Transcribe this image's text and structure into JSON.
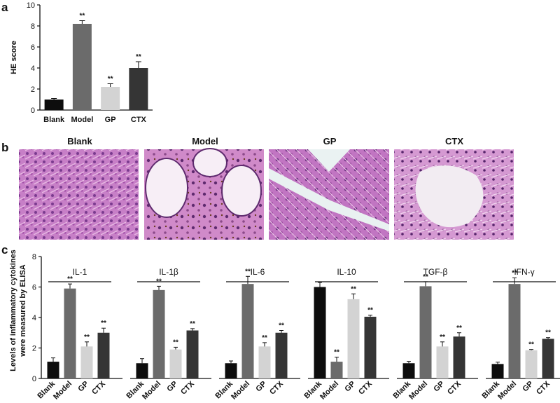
{
  "panels": {
    "a": "a",
    "b": "b",
    "c": "c"
  },
  "images": {
    "labels": [
      "Blank",
      "Model",
      "GP",
      "CTX"
    ]
  },
  "colors": {
    "Blank": "#0d0d0d",
    "Model": "#6b6b6b",
    "GP": "#d3d3d3",
    "CTX": "#353535"
  },
  "chart_data": [
    {
      "type": "bar",
      "panel": "a",
      "ylabel": "HE score",
      "ylim": [
        0,
        10
      ],
      "yticks": [
        0,
        2,
        4,
        6,
        8,
        10
      ],
      "categories": [
        "Blank",
        "Model",
        "GP",
        "CTX"
      ],
      "values": [
        1.0,
        8.2,
        2.2,
        4.0
      ],
      "errors": [
        0.1,
        0.3,
        0.3,
        0.6
      ],
      "annotations": [
        "",
        "**",
        "**",
        "**"
      ]
    },
    {
      "type": "bar",
      "panel": "c",
      "ylabel": [
        "Levels of inflammatory cytokines",
        "were measured by ELISA"
      ],
      "ylim": [
        0,
        8
      ],
      "yticks": [
        0,
        2,
        4,
        6,
        8
      ],
      "categories": [
        "Blank",
        "Model",
        "GP",
        "CTX"
      ],
      "groups": [
        {
          "name": "IL-1",
          "values": [
            1.1,
            5.9,
            2.1,
            3.0
          ],
          "errors": [
            0.25,
            0.3,
            0.3,
            0.3
          ],
          "annotations": [
            "",
            "**",
            "**",
            "**"
          ]
        },
        {
          "name": "IL-1β",
          "values": [
            1.0,
            5.8,
            1.9,
            3.15
          ],
          "errors": [
            0.3,
            0.25,
            0.15,
            0.12
          ],
          "annotations": [
            "",
            "**",
            "**",
            "**"
          ]
        },
        {
          "name": "IL-6",
          "values": [
            1.0,
            6.2,
            2.1,
            3.0
          ],
          "errors": [
            0.15,
            0.5,
            0.25,
            0.15
          ],
          "annotations": [
            "",
            "**",
            "**",
            "**"
          ]
        },
        {
          "name": "IL-10",
          "values": [
            6.0,
            1.1,
            5.2,
            4.05
          ],
          "errors": [
            0.3,
            0.3,
            0.35,
            0.1
          ],
          "annotations": [
            "",
            "**",
            "**",
            "**"
          ]
        },
        {
          "name": "TGF-β",
          "values": [
            1.0,
            6.05,
            2.1,
            2.75
          ],
          "errors": [
            0.12,
            0.3,
            0.3,
            0.25
          ],
          "annotations": [
            "",
            "**",
            "**",
            "**"
          ]
        },
        {
          "name": "IFN-γ",
          "values": [
            0.95,
            6.2,
            1.85,
            2.6
          ],
          "errors": [
            0.12,
            0.4,
            0.05,
            0.08
          ],
          "annotations": [
            "",
            "**",
            "**",
            "**"
          ]
        }
      ]
    }
  ]
}
